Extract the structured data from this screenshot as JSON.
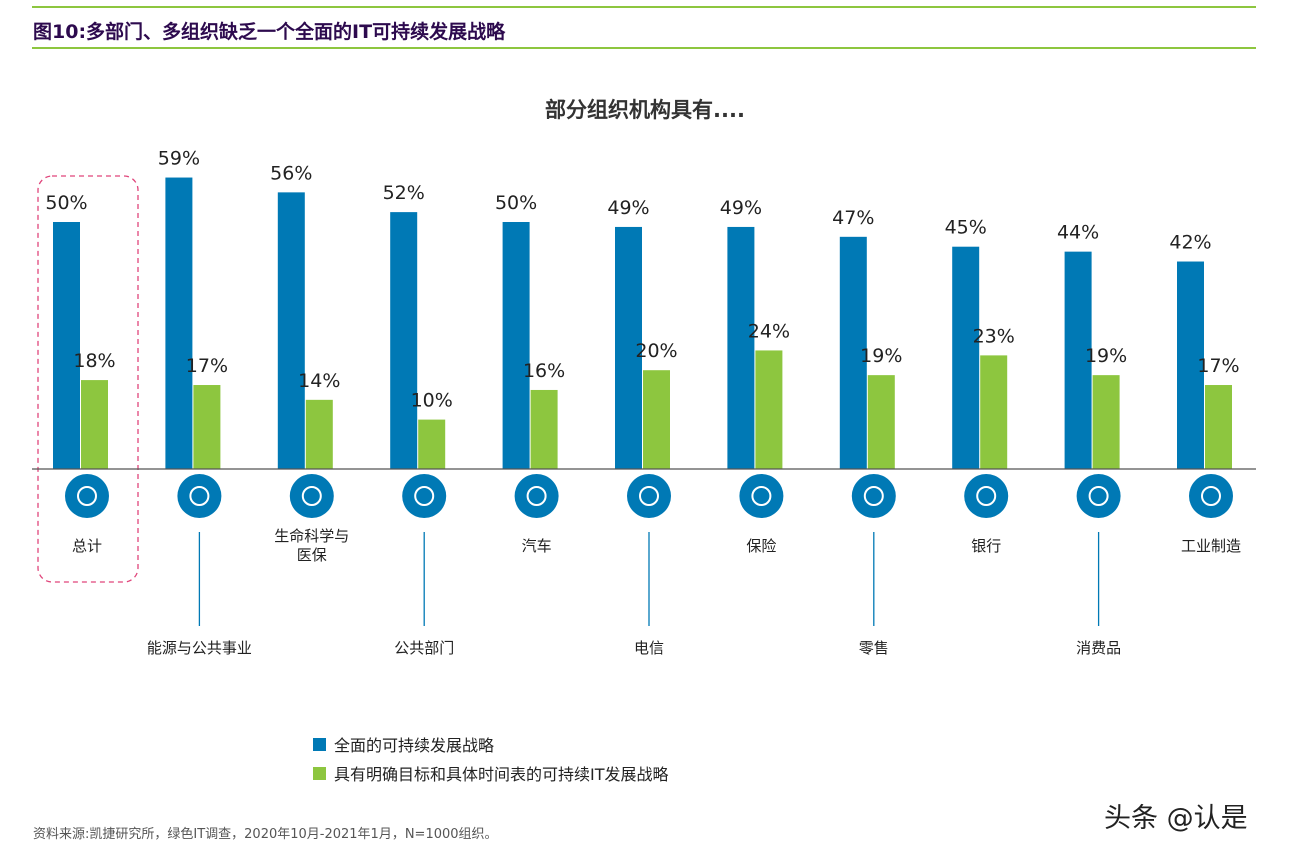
{
  "figure_title": "图10:多部门、多组织缺乏一个全面的IT可持续发展战略",
  "source": "资料来源:凯捷研究所，绿色IT调查，2020年10月-2021年1月，N=1000组织。",
  "watermark": "头条 @认是",
  "colors": {
    "blue": "#0079b5",
    "green": "#8dc63f",
    "highlight": "#e0457b"
  },
  "chart_data": {
    "type": "bar",
    "title": "部分组织机构具有....",
    "categories": [
      "总计",
      "能源与公共事业",
      "生命科学与医保",
      "公共部门",
      "汽车",
      "电信",
      "保险",
      "零售",
      "银行",
      "消费品",
      "工业制造"
    ],
    "category_lines": [
      [
        "总计"
      ],
      [
        "能源与公共事业"
      ],
      [
        "生命科学与",
        "医保"
      ],
      [
        "公共部门"
      ],
      [
        "汽车"
      ],
      [
        "电信"
      ],
      [
        "保险"
      ],
      [
        "零售"
      ],
      [
        "银行"
      ],
      [
        "消费品"
      ],
      [
        "工业制造"
      ]
    ],
    "icons": [
      "globe-icon",
      "wind-turbine-icon",
      "dna-icon",
      "government-building-icon",
      "car-icon",
      "satellite-dish-icon",
      "house-hands-icon",
      "shopping-cart-icon",
      "bank-icon",
      "price-tag-icon",
      "factory-icon"
    ],
    "series": [
      {
        "name": "全面的可持续发展战略",
        "values": [
          50,
          59,
          56,
          52,
          50,
          49,
          49,
          47,
          45,
          44,
          42
        ]
      },
      {
        "name": "具有明确目标和具体时间表的可持续IT发展战略",
        "values": [
          18,
          17,
          14,
          10,
          16,
          20,
          24,
          19,
          23,
          19,
          17
        ]
      }
    ],
    "value_suffix": "%",
    "ylim": [
      0,
      65
    ],
    "legend_position": "bottom",
    "highlighted_category": "总计"
  }
}
